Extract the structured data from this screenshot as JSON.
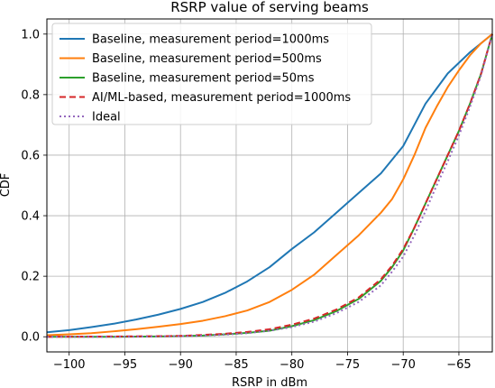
{
  "chart_data": {
    "type": "line",
    "title": "RSRP value of serving beams",
    "xlabel": "RSRP in dBm",
    "ylabel": "CDF",
    "xlim": [
      -102,
      -62
    ],
    "ylim": [
      -0.05,
      1.05
    ],
    "xticks": [
      -100,
      -95,
      -90,
      -85,
      -80,
      -75,
      -70,
      -65
    ],
    "yticks": [
      0.0,
      0.2,
      0.4,
      0.6,
      0.8,
      1.0
    ],
    "xtick_labels": [
      "−100",
      "−95",
      "−90",
      "−85",
      "−80",
      "−75",
      "−70",
      "−65"
    ],
    "ytick_labels": [
      "0.0",
      "0.2",
      "0.4",
      "0.6",
      "0.8",
      "1.0"
    ],
    "grid": true,
    "legend_position": "top-left",
    "series": [
      {
        "name": "Baseline, measurement period=1000ms",
        "color": "#1f77b4",
        "style": "solid",
        "points": [
          [
            -102,
            0.015
          ],
          [
            -100,
            0.022
          ],
          [
            -98,
            0.032
          ],
          [
            -96,
            0.043
          ],
          [
            -94,
            0.057
          ],
          [
            -92,
            0.073
          ],
          [
            -90,
            0.092
          ],
          [
            -88,
            0.115
          ],
          [
            -86,
            0.145
          ],
          [
            -84,
            0.183
          ],
          [
            -82,
            0.23
          ],
          [
            -80,
            0.29
          ],
          [
            -78,
            0.345
          ],
          [
            -76,
            0.41
          ],
          [
            -74,
            0.475
          ],
          [
            -72,
            0.54
          ],
          [
            -70,
            0.63
          ],
          [
            -69,
            0.7
          ],
          [
            -68,
            0.77
          ],
          [
            -67,
            0.82
          ],
          [
            -66,
            0.87
          ],
          [
            -65,
            0.905
          ],
          [
            -64,
            0.94
          ],
          [
            -63,
            0.97
          ],
          [
            -62,
            1.0
          ]
        ]
      },
      {
        "name": "Baseline, measurement period=500ms",
        "color": "#ff7f0e",
        "style": "solid",
        "points": [
          [
            -102,
            0.005
          ],
          [
            -100,
            0.008
          ],
          [
            -98,
            0.012
          ],
          [
            -96,
            0.018
          ],
          [
            -94,
            0.025
          ],
          [
            -92,
            0.033
          ],
          [
            -90,
            0.042
          ],
          [
            -88,
            0.053
          ],
          [
            -86,
            0.068
          ],
          [
            -84,
            0.087
          ],
          [
            -82,
            0.115
          ],
          [
            -80,
            0.155
          ],
          [
            -78,
            0.205
          ],
          [
            -76,
            0.27
          ],
          [
            -74,
            0.335
          ],
          [
            -72,
            0.41
          ],
          [
            -71,
            0.455
          ],
          [
            -70,
            0.52
          ],
          [
            -69,
            0.6
          ],
          [
            -68,
            0.69
          ],
          [
            -67,
            0.76
          ],
          [
            -66,
            0.825
          ],
          [
            -65,
            0.88
          ],
          [
            -64,
            0.93
          ],
          [
            -63,
            0.97
          ],
          [
            -62,
            1.0
          ]
        ]
      },
      {
        "name": "Baseline, measurement period=50ms",
        "color": "#2ca02c",
        "style": "solid",
        "points": [
          [
            -102,
            0.0
          ],
          [
            -96,
            0.0
          ],
          [
            -92,
            0.001
          ],
          [
            -90,
            0.002
          ],
          [
            -88,
            0.004
          ],
          [
            -86,
            0.008
          ],
          [
            -84,
            0.013
          ],
          [
            -82,
            0.02
          ],
          [
            -80,
            0.035
          ],
          [
            -78,
            0.055
          ],
          [
            -76,
            0.085
          ],
          [
            -74,
            0.125
          ],
          [
            -72,
            0.185
          ],
          [
            -71,
            0.23
          ],
          [
            -70,
            0.285
          ],
          [
            -69,
            0.36
          ],
          [
            -68,
            0.44
          ],
          [
            -67,
            0.52
          ],
          [
            -66,
            0.6
          ],
          [
            -65,
            0.68
          ],
          [
            -64,
            0.77
          ],
          [
            -63,
            0.87
          ],
          [
            -62,
            1.0
          ]
        ]
      },
      {
        "name": "AI/ML-based, measurement period=1000ms",
        "color": "#d62728",
        "style": "dashed",
        "points": [
          [
            -102,
            0.0
          ],
          [
            -96,
            0.001
          ],
          [
            -92,
            0.002
          ],
          [
            -90,
            0.003
          ],
          [
            -88,
            0.006
          ],
          [
            -86,
            0.01
          ],
          [
            -84,
            0.016
          ],
          [
            -82,
            0.025
          ],
          [
            -80,
            0.04
          ],
          [
            -78,
            0.06
          ],
          [
            -76,
            0.09
          ],
          [
            -74,
            0.13
          ],
          [
            -72,
            0.19
          ],
          [
            -71,
            0.235
          ],
          [
            -70,
            0.29
          ],
          [
            -69,
            0.36
          ],
          [
            -68,
            0.44
          ],
          [
            -67,
            0.52
          ],
          [
            -66,
            0.6
          ],
          [
            -65,
            0.68
          ],
          [
            -64,
            0.77
          ],
          [
            -63,
            0.87
          ],
          [
            -62,
            1.0
          ]
        ]
      },
      {
        "name": "Ideal",
        "color": "#9467bd",
        "style": "dotted",
        "points": [
          [
            -102,
            0.0
          ],
          [
            -96,
            0.0
          ],
          [
            -92,
            0.001
          ],
          [
            -90,
            0.002
          ],
          [
            -88,
            0.004
          ],
          [
            -86,
            0.007
          ],
          [
            -84,
            0.012
          ],
          [
            -82,
            0.02
          ],
          [
            -80,
            0.032
          ],
          [
            -78,
            0.05
          ],
          [
            -76,
            0.078
          ],
          [
            -74,
            0.115
          ],
          [
            -72,
            0.17
          ],
          [
            -71,
            0.215
          ],
          [
            -70,
            0.265
          ],
          [
            -69,
            0.335
          ],
          [
            -68,
            0.415
          ],
          [
            -67,
            0.5
          ],
          [
            -66,
            0.58
          ],
          [
            -65,
            0.665
          ],
          [
            -64,
            0.76
          ],
          [
            -63,
            0.865
          ],
          [
            -62,
            1.0
          ]
        ]
      }
    ]
  }
}
